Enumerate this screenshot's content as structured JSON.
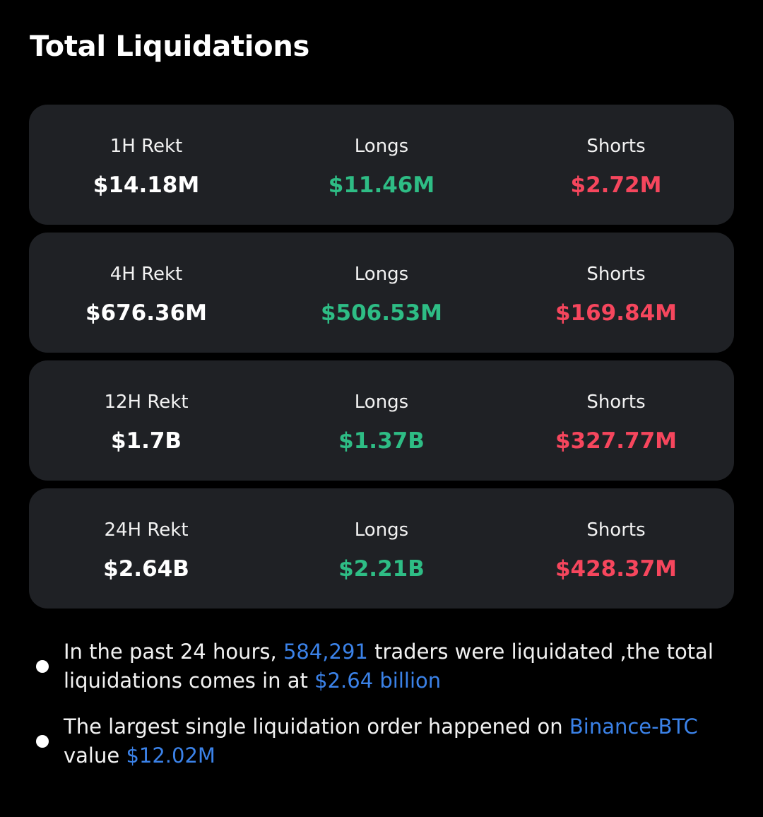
{
  "header": {
    "title": "Total Liquidations"
  },
  "cards": [
    {
      "rekt_label": "1H Rekt",
      "rekt_value": "$14.18M",
      "longs_label": "Longs",
      "longs_value": "$11.46M",
      "shorts_label": "Shorts",
      "shorts_value": "$2.72M"
    },
    {
      "rekt_label": "4H Rekt",
      "rekt_value": "$676.36M",
      "longs_label": "Longs",
      "longs_value": "$506.53M",
      "shorts_label": "Shorts",
      "shorts_value": "$169.84M"
    },
    {
      "rekt_label": "12H Rekt",
      "rekt_value": "$1.7B",
      "longs_label": "Longs",
      "longs_value": "$1.37B",
      "shorts_label": "Shorts",
      "shorts_value": "$327.77M"
    },
    {
      "rekt_label": "24H Rekt",
      "rekt_value": "$2.64B",
      "longs_label": "Longs",
      "longs_value": "$2.21B",
      "shorts_label": "Shorts",
      "shorts_value": "$428.37M"
    }
  ],
  "notes": {
    "note1": {
      "text_before": "In the past 24 hours, ",
      "traders_count": "584,291",
      "text_middle": " traders were liquidated ,the total liquidations comes in at ",
      "total_amount": "$2.64 billion"
    },
    "note2": {
      "text_before": "The largest single liquidation order happened on ",
      "exchange_pair": "Binance-BTC",
      "text_middle": " value ",
      "order_value": "$12.02M"
    }
  },
  "colors": {
    "background": "#000000",
    "card": "#1f2125",
    "longs": "#2ebd85",
    "shorts": "#f6465d",
    "highlight": "#3b82e8"
  }
}
